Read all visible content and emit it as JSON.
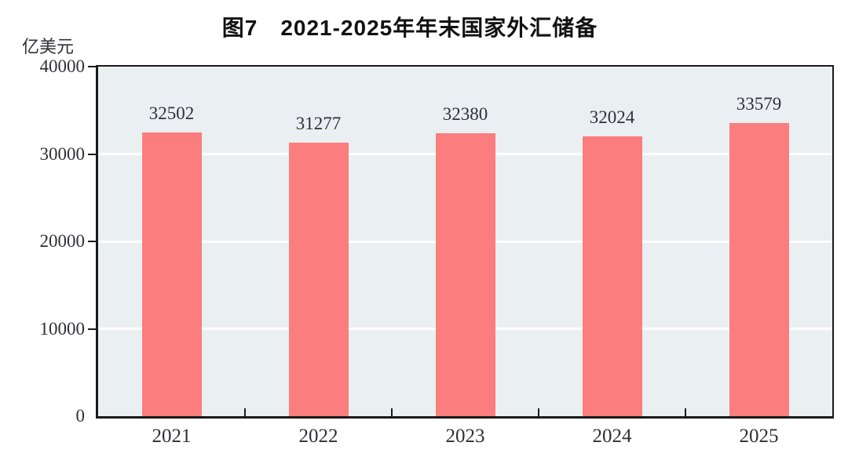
{
  "chart_data": {
    "type": "bar",
    "title": "图7　2021-2025年年末国家外汇储备",
    "unit_label": "亿美元",
    "categories": [
      "2021",
      "2022",
      "2023",
      "2024",
      "2025"
    ],
    "values": [
      32502,
      31277,
      32380,
      32024,
      33579
    ],
    "ylim": [
      0,
      40000
    ],
    "yticks": [
      0,
      10000,
      20000,
      30000,
      40000
    ],
    "gridlines": [
      10000,
      20000,
      30000
    ],
    "legend": "none",
    "grid": "horizontal",
    "bar_color": "#FB7D7D",
    "plot_background": "#EAF0F2",
    "grid_color": "#ffffff",
    "axis_color": "#1a1a1a",
    "text_color": "#2f2f38"
  }
}
